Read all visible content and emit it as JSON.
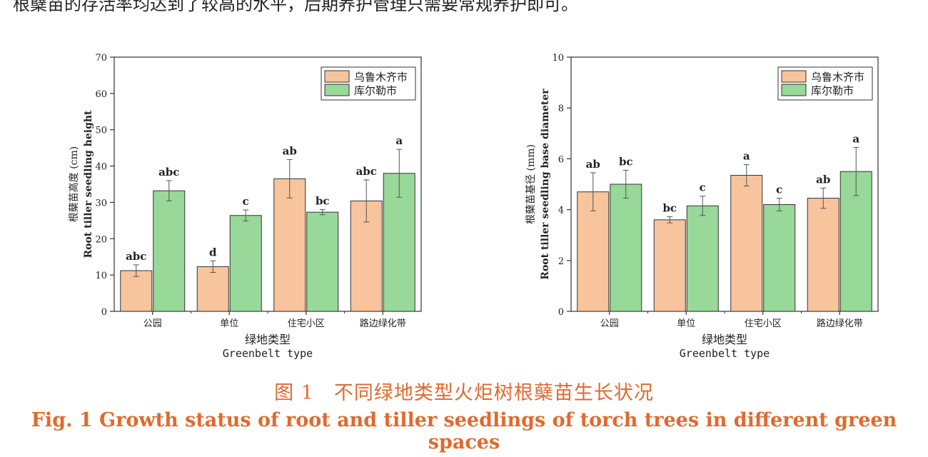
{
  "top_text": "根蘖苗的存活率均达到了较高的水平，后期养护管理只需要常规养护即可。",
  "caption": {
    "cn": "图 1　不同绿地类型火炬树根蘖苗生长状况",
    "en": "Fig. 1   Growth status of root and tiller seedlings of torch trees in different green spaces"
  },
  "colors": {
    "orange": "#f8c49d",
    "green": "#98d898",
    "caption": "#e06a2e"
  },
  "chart_data": [
    {
      "type": "bar",
      "title": "",
      "xlabel": "绿地类型",
      "xlabel_en": "Greenbelt type",
      "ylabel": "根蘖苗高度 (cm)",
      "ylabel_en": "Root tiller seedling height",
      "ylim": [
        0,
        70
      ],
      "yticks": [
        0,
        10,
        20,
        30,
        40,
        50,
        60,
        70
      ],
      "categories": [
        "公园",
        "单位",
        "住宅小区",
        "路边绿化带"
      ],
      "legend_position": "top-right",
      "series": [
        {
          "name": "乌鲁木齐市",
          "color": "#f8c49d",
          "values": [
            11.2,
            12.3,
            36.5,
            30.4
          ],
          "errors": [
            1.6,
            1.6,
            5.3,
            5.8
          ],
          "labels": [
            "abc",
            "d",
            "ab",
            "abc"
          ]
        },
        {
          "name": "库尔勒市",
          "color": "#98d898",
          "values": [
            33.2,
            26.4,
            27.3,
            38.0
          ],
          "errors": [
            2.8,
            1.5,
            0.7,
            6.6
          ],
          "labels": [
            "abc",
            "c",
            "bc",
            "a"
          ]
        }
      ]
    },
    {
      "type": "bar",
      "title": "",
      "xlabel": "绿地类型",
      "xlabel_en": "Greenbelt type",
      "ylabel": "根蘖苗基径 (mm)",
      "ylabel_en": "Root tiller seedling base diameter",
      "ylim": [
        0,
        10
      ],
      "yticks": [
        0,
        2,
        4,
        6,
        8,
        10
      ],
      "categories": [
        "公园",
        "单位",
        "住宅小区",
        "路边绿化带"
      ],
      "legend_position": "top-right",
      "series": [
        {
          "name": "乌鲁木齐市",
          "color": "#f8c49d",
          "values": [
            4.7,
            3.6,
            5.35,
            4.45
          ],
          "errors": [
            0.75,
            0.12,
            0.42,
            0.4
          ],
          "labels": [
            "ab",
            "bc",
            "a",
            "ab"
          ]
        },
        {
          "name": "库尔勒市",
          "color": "#98d898",
          "values": [
            5.0,
            4.15,
            4.2,
            5.5
          ],
          "errors": [
            0.55,
            0.38,
            0.25,
            0.95
          ],
          "labels": [
            "bc",
            "c",
            "c",
            "a"
          ]
        }
      ]
    }
  ]
}
